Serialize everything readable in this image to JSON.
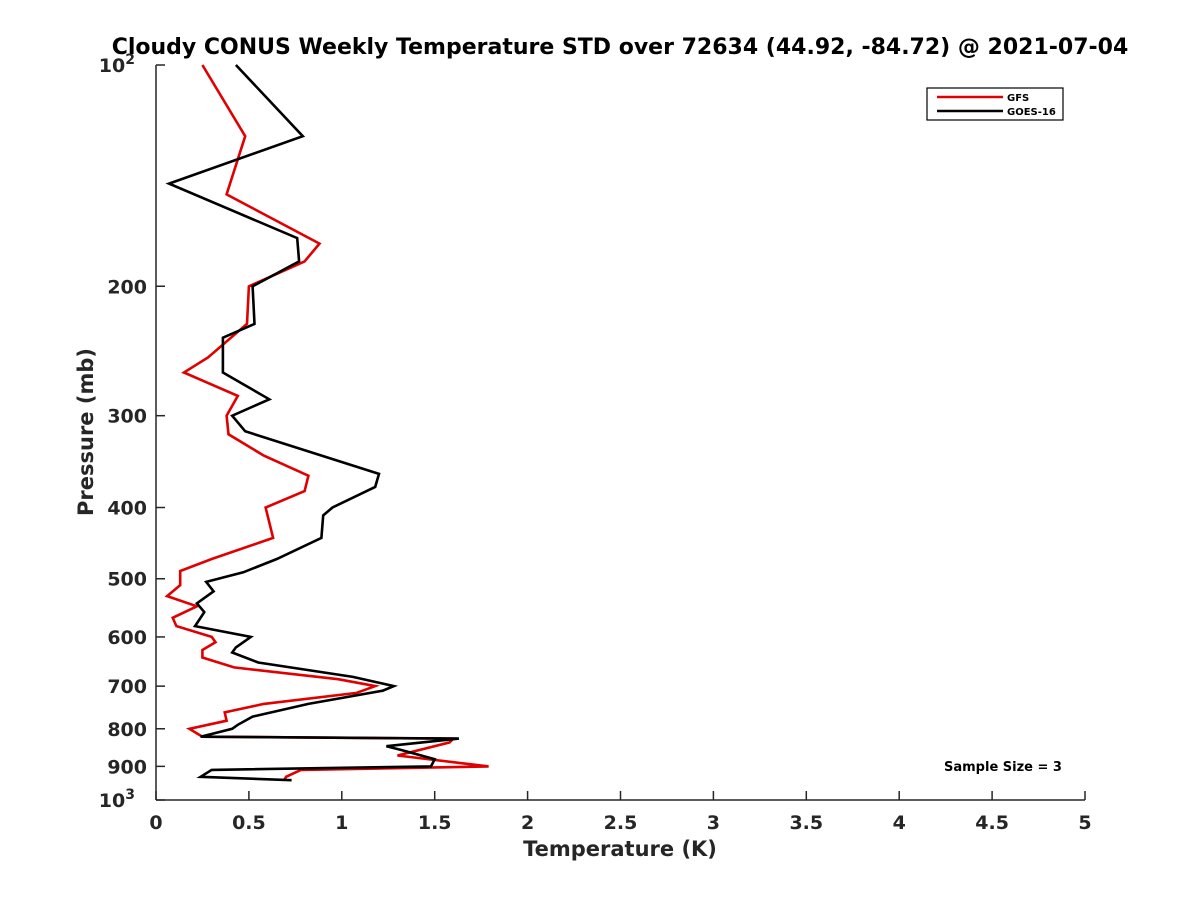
{
  "chart_data": {
    "type": "line",
    "title": "Cloudy CONUS Weekly Temperature STD over 72634 (44.92, -84.72) @ 2021-07-04",
    "xlabel": "Temperature (K)",
    "ylabel": "Pressure (mb)",
    "xlim": [
      0,
      5
    ],
    "ylim": [
      100,
      1000
    ],
    "yscale": "log",
    "y_reversed": true,
    "grid": false,
    "legend_position": "top-right",
    "x_ticks": [
      0,
      0.5,
      1,
      1.5,
      2,
      2.5,
      3,
      3.5,
      4,
      4.5,
      5
    ],
    "x_tick_labels": [
      "0",
      "0.5",
      "1",
      "1.5",
      "2",
      "2.5",
      "3",
      "3.5",
      "4",
      "4.5",
      "5"
    ],
    "y_ticks": [
      100,
      200,
      300,
      400,
      500,
      600,
      700,
      800,
      900,
      1000
    ],
    "y_tick_labels": [
      {
        "base": "10",
        "exp": "2"
      },
      {
        "text": "200"
      },
      {
        "text": "300"
      },
      {
        "text": "400"
      },
      {
        "text": "500"
      },
      {
        "text": "600"
      },
      {
        "text": "700"
      },
      {
        "text": "800"
      },
      {
        "text": "900"
      },
      {
        "base": "10",
        "exp": "3"
      }
    ],
    "series": [
      {
        "name": "GFS",
        "color": "#e00000",
        "points": [
          [
            0.25,
            100
          ],
          [
            0.48,
            125
          ],
          [
            0.38,
            150
          ],
          [
            0.88,
            175
          ],
          [
            0.8,
            185
          ],
          [
            0.5,
            200
          ],
          [
            0.49,
            225
          ],
          [
            0.28,
            250
          ],
          [
            0.15,
            262
          ],
          [
            0.44,
            282
          ],
          [
            0.38,
            300
          ],
          [
            0.39,
            318
          ],
          [
            0.58,
            340
          ],
          [
            0.82,
            362
          ],
          [
            0.8,
            380
          ],
          [
            0.59,
            400
          ],
          [
            0.63,
            440
          ],
          [
            0.3,
            470
          ],
          [
            0.13,
            488
          ],
          [
            0.13,
            510
          ],
          [
            0.06,
            528
          ],
          [
            0.22,
            545
          ],
          [
            0.09,
            565
          ],
          [
            0.11,
            580
          ],
          [
            0.3,
            600
          ],
          [
            0.32,
            610
          ],
          [
            0.25,
            625
          ],
          [
            0.25,
            640
          ],
          [
            0.42,
            660
          ],
          [
            0.98,
            685
          ],
          [
            1.18,
            700
          ],
          [
            1.08,
            715
          ],
          [
            0.58,
            740
          ],
          [
            0.37,
            760
          ],
          [
            0.38,
            780
          ],
          [
            0.18,
            800
          ],
          [
            0.25,
            820
          ],
          [
            1.6,
            825
          ],
          [
            1.58,
            835
          ],
          [
            1.3,
            870
          ],
          [
            1.79,
            900
          ],
          [
            0.78,
            910
          ],
          [
            0.7,
            930
          ],
          [
            0.69,
            940
          ]
        ]
      },
      {
        "name": "GOES-16",
        "color": "#000000",
        "points": [
          [
            0.43,
            100
          ],
          [
            0.79,
            125
          ],
          [
            0.07,
            145
          ],
          [
            0.76,
            172
          ],
          [
            0.77,
            185
          ],
          [
            0.52,
            200
          ],
          [
            0.53,
            225
          ],
          [
            0.36,
            235
          ],
          [
            0.36,
            262
          ],
          [
            0.61,
            285
          ],
          [
            0.41,
            300
          ],
          [
            0.48,
            315
          ],
          [
            1.2,
            360
          ],
          [
            1.18,
            375
          ],
          [
            0.95,
            400
          ],
          [
            0.9,
            410
          ],
          [
            0.89,
            440
          ],
          [
            0.65,
            470
          ],
          [
            0.47,
            490
          ],
          [
            0.27,
            505
          ],
          [
            0.31,
            520
          ],
          [
            0.22,
            540
          ],
          [
            0.26,
            555
          ],
          [
            0.23,
            570
          ],
          [
            0.21,
            580
          ],
          [
            0.51,
            600
          ],
          [
            0.43,
            620
          ],
          [
            0.41,
            630
          ],
          [
            0.55,
            650
          ],
          [
            1.06,
            680
          ],
          [
            1.28,
            700
          ],
          [
            1.22,
            710
          ],
          [
            0.82,
            740
          ],
          [
            0.52,
            770
          ],
          [
            0.44,
            790
          ],
          [
            0.41,
            800
          ],
          [
            0.24,
            820
          ],
          [
            1.63,
            825
          ],
          [
            1.24,
            845
          ],
          [
            1.32,
            855
          ],
          [
            1.5,
            880
          ],
          [
            1.48,
            900
          ],
          [
            0.3,
            910
          ],
          [
            0.24,
            930
          ],
          [
            0.73,
            940
          ]
        ]
      }
    ],
    "annotations": [
      {
        "text": "Sample Size = 3",
        "position": "bottom-right"
      }
    ]
  }
}
